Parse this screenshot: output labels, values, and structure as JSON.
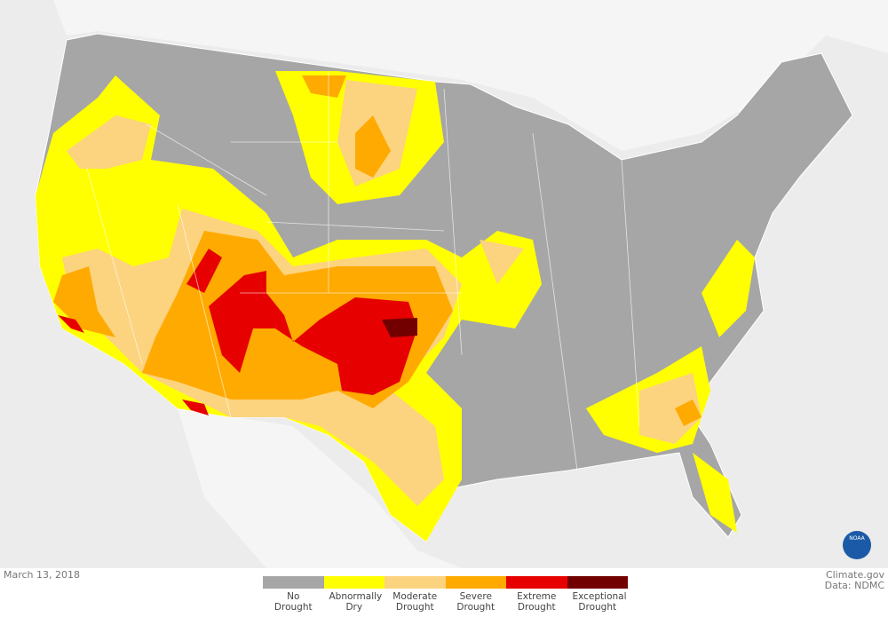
{
  "date": "March 13, 2018",
  "credit": "Climate.gov",
  "source": "Data: NDMC",
  "logo": "NOAA",
  "legend": [
    {
      "label": "No Drought",
      "color": "#a6a6a6"
    },
    {
      "label": "Abnormally Dry",
      "color": "#ffff00"
    },
    {
      "label": "Moderate Drought",
      "color": "#fcd37f"
    },
    {
      "label": "Severe Drought",
      "color": "#ffaa00"
    },
    {
      "label": "Extreme Drought",
      "color": "#e60000"
    },
    {
      "label": "Exceptional Drought",
      "color": "#730000"
    }
  ]
}
